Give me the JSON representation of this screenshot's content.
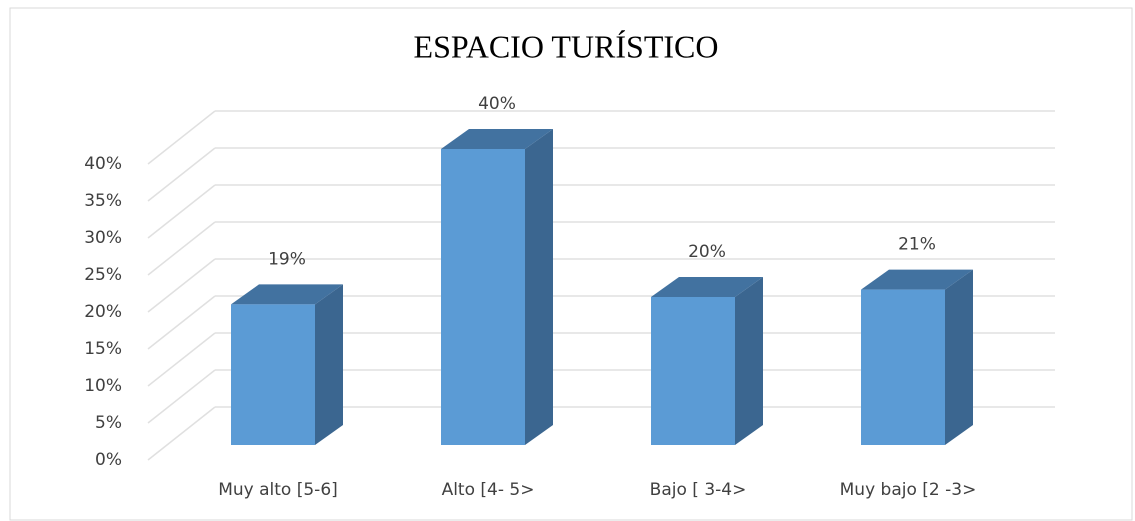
{
  "chart_data": {
    "type": "bar3d",
    "title": "ESPACIO TURÍSTICO",
    "categories": [
      "Muy alto [5-6]",
      "Alto [4- 5>",
      "Bajo [ 3-4>",
      "Muy bajo [2 -3>"
    ],
    "values": [
      19,
      40,
      20,
      21
    ],
    "value_labels": [
      "19%",
      "40%",
      "20%",
      "21%"
    ],
    "color": "#5b9bd5",
    "ylim": [
      0,
      40
    ],
    "yticks": [
      {
        "value": 0,
        "label": "0%"
      },
      {
        "value": 5,
        "label": "5%"
      },
      {
        "value": 10,
        "label": "10%"
      },
      {
        "value": 15,
        "label": "15%"
      },
      {
        "value": 20,
        "label": "20%"
      },
      {
        "value": 25,
        "label": "25%"
      },
      {
        "value": 30,
        "label": "30%"
      },
      {
        "value": 35,
        "label": "35%"
      },
      {
        "value": 40,
        "label": "40%"
      }
    ],
    "grid": true
  }
}
